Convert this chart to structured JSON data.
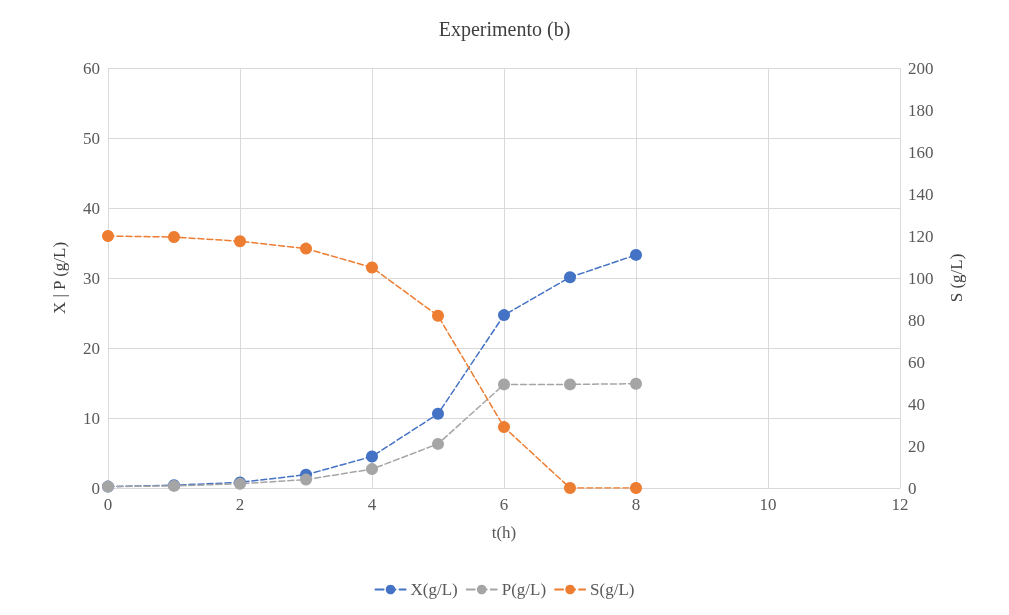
{
  "chart_data": {
    "type": "line",
    "title": "Experimento (b)",
    "xlabel": "t(h)",
    "ylabel": "X | P (g/L)",
    "y2label": "S (g/L)",
    "x": [
      0,
      1,
      2,
      3,
      4,
      5,
      6,
      7,
      8
    ],
    "series": [
      {
        "name": "X(g/L)",
        "color": "#4472c4",
        "values": [
          0.2,
          0.4,
          0.8,
          1.9,
          4.5,
          10.6,
          24.7,
          30.1,
          33.3
        ]
      },
      {
        "name": "P(g/L)",
        "color": "#a5a5a5",
        "values": [
          0.2,
          0.3,
          0.6,
          1.2,
          2.7,
          6.3,
          14.8,
          14.8,
          14.9
        ]
      },
      {
        "name": "S(g/L)",
        "color": "#ed7d31",
        "axis": "y2",
        "values": [
          120,
          119.5,
          117.5,
          114,
          105,
          82,
          29,
          0,
          0
        ]
      }
    ],
    "xlim": [
      0,
      12
    ],
    "xticks": [
      0,
      2,
      4,
      6,
      8,
      10,
      12
    ],
    "ylim": [
      0,
      60
    ],
    "yticks": [
      0,
      10,
      20,
      30,
      40,
      50,
      60
    ],
    "y2lim": [
      0,
      200
    ],
    "y2ticks": [
      0,
      20,
      40,
      60,
      80,
      100,
      120,
      140,
      160,
      180,
      200
    ],
    "grid": true,
    "legend": "bottom",
    "marker": "circle",
    "line_style": "dashed"
  }
}
